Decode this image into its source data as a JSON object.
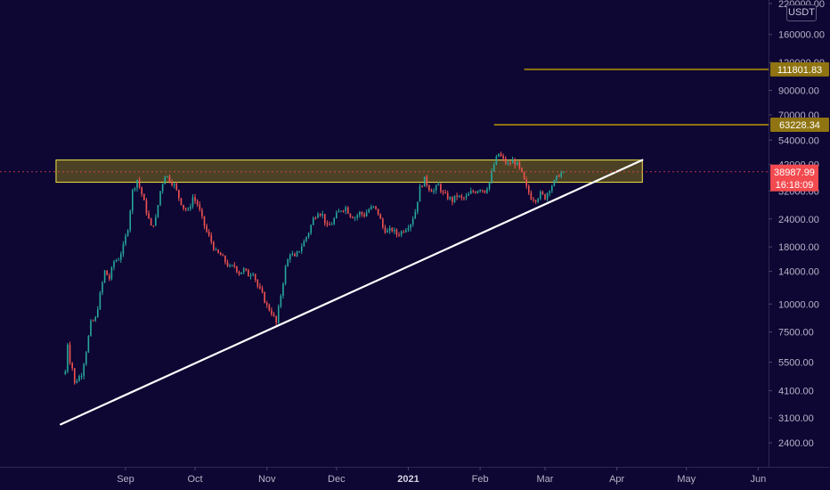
{
  "chart_data": {
    "type": "candlestick",
    "symbol_currency": "USDT",
    "y_scale": "log",
    "ylim": [
      2000,
      230000
    ],
    "y_ticks": [
      {
        "value": 220000,
        "label": "220000.00"
      },
      {
        "value": 160000,
        "label": "160000.00"
      },
      {
        "value": 120000,
        "label": "120000.00"
      },
      {
        "value": 90000,
        "label": "90000.00"
      },
      {
        "value": 70000,
        "label": "70000.00"
      },
      {
        "value": 54000,
        "label": "54000.00"
      },
      {
        "value": 42000,
        "label": "42000.00"
      },
      {
        "value": 32000,
        "label": "32000.00"
      },
      {
        "value": 24000,
        "label": "24000.00"
      },
      {
        "value": 18000,
        "label": "18000.00"
      },
      {
        "value": 14000,
        "label": "14000.00"
      },
      {
        "value": 10000,
        "label": "10000.00"
      },
      {
        "value": 7500,
        "label": "7500.00"
      },
      {
        "value": 5500,
        "label": "5500.00"
      },
      {
        "value": 4100,
        "label": "4100.00"
      },
      {
        "value": 3100,
        "label": "3100.00"
      },
      {
        "value": 2400,
        "label": "2400.00"
      }
    ],
    "x_labels": [
      {
        "date": "2020-09-01",
        "label": "Sep",
        "bold": false
      },
      {
        "date": "2020-10-01",
        "label": "Oct",
        "bold": false
      },
      {
        "date": "2020-11-01",
        "label": "Nov",
        "bold": false
      },
      {
        "date": "2020-12-01",
        "label": "Dec",
        "bold": false
      },
      {
        "date": "2021-01-01",
        "label": "2021",
        "bold": true
      },
      {
        "date": "2021-02-01",
        "label": "Feb",
        "bold": false
      },
      {
        "date": "2021-03-01",
        "label": "Mar",
        "bold": false
      },
      {
        "date": "2021-04-01",
        "label": "Apr",
        "bold": false
      },
      {
        "date": "2021-05-01",
        "label": "May",
        "bold": false
      },
      {
        "date": "2021-06-01",
        "label": "Jun",
        "bold": false
      }
    ],
    "price_path": [
      [
        "2020-08-06",
        5000
      ],
      [
        "2020-08-07",
        6700
      ],
      [
        "2020-08-08",
        5600
      ],
      [
        "2020-08-09",
        5200
      ],
      [
        "2020-08-10",
        4400
      ],
      [
        "2020-08-11",
        4600
      ],
      [
        "2020-08-13",
        4900
      ],
      [
        "2020-08-15",
        6200
      ],
      [
        "2020-08-17",
        8200
      ],
      [
        "2020-08-19",
        8600
      ],
      [
        "2020-08-21",
        11000
      ],
      [
        "2020-08-23",
        14000
      ],
      [
        "2020-08-25",
        13000
      ],
      [
        "2020-08-27",
        15500
      ],
      [
        "2020-08-29",
        16000
      ],
      [
        "2020-08-31",
        18000
      ],
      [
        "2020-09-02",
        22000
      ],
      [
        "2020-09-04",
        32000
      ],
      [
        "2020-09-06",
        36000
      ],
      [
        "2020-09-08",
        31000
      ],
      [
        "2020-09-10",
        26000
      ],
      [
        "2020-09-12",
        22000
      ],
      [
        "2020-09-14",
        24000
      ],
      [
        "2020-09-16",
        32000
      ],
      [
        "2020-09-18",
        38000
      ],
      [
        "2020-09-20",
        36000
      ],
      [
        "2020-09-22",
        34000
      ],
      [
        "2020-09-24",
        30000
      ],
      [
        "2020-09-26",
        27000
      ],
      [
        "2020-09-28",
        26000
      ],
      [
        "2020-09-30",
        30000
      ],
      [
        "2020-10-02",
        28000
      ],
      [
        "2020-10-04",
        24000
      ],
      [
        "2020-10-06",
        21000
      ],
      [
        "2020-10-08",
        19000
      ],
      [
        "2020-10-10",
        17000
      ],
      [
        "2020-10-12",
        16500
      ],
      [
        "2020-10-14",
        15500
      ],
      [
        "2020-10-16",
        14500
      ],
      [
        "2020-10-18",
        14800
      ],
      [
        "2020-10-20",
        13800
      ],
      [
        "2020-10-22",
        14200
      ],
      [
        "2020-10-24",
        13500
      ],
      [
        "2020-10-26",
        14000
      ],
      [
        "2020-10-28",
        12000
      ],
      [
        "2020-10-30",
        11000
      ],
      [
        "2020-11-01",
        9800
      ],
      [
        "2020-11-03",
        9200
      ],
      [
        "2020-11-05",
        8200
      ],
      [
        "2020-11-07",
        11000
      ],
      [
        "2020-11-09",
        14500
      ],
      [
        "2020-11-11",
        17000
      ],
      [
        "2020-11-13",
        16000
      ],
      [
        "2020-11-15",
        17500
      ],
      [
        "2020-11-17",
        19000
      ],
      [
        "2020-11-19",
        21000
      ],
      [
        "2020-11-21",
        24000
      ],
      [
        "2020-11-23",
        26000
      ],
      [
        "2020-11-25",
        25000
      ],
      [
        "2020-11-27",
        22000
      ],
      [
        "2020-11-29",
        23000
      ],
      [
        "2020-12-01",
        25000
      ],
      [
        "2020-12-03",
        26500
      ],
      [
        "2020-12-05",
        27000
      ],
      [
        "2020-12-07",
        25000
      ],
      [
        "2020-12-09",
        24500
      ],
      [
        "2020-12-11",
        25500
      ],
      [
        "2020-12-13",
        25000
      ],
      [
        "2020-12-15",
        26500
      ],
      [
        "2020-12-17",
        27000
      ],
      [
        "2020-12-19",
        25500
      ],
      [
        "2020-12-21",
        22000
      ],
      [
        "2020-12-23",
        21000
      ],
      [
        "2020-12-25",
        21500
      ],
      [
        "2020-12-27",
        20500
      ],
      [
        "2020-12-29",
        21000
      ],
      [
        "2020-12-31",
        22000
      ],
      [
        "2021-01-02",
        23000
      ],
      [
        "2021-01-04",
        26000
      ],
      [
        "2021-01-06",
        33000
      ],
      [
        "2021-01-08",
        36000
      ],
      [
        "2021-01-10",
        33000
      ],
      [
        "2021-01-12",
        32000
      ],
      [
        "2021-01-14",
        34000
      ],
      [
        "2021-01-16",
        31000
      ],
      [
        "2021-01-18",
        30000
      ],
      [
        "2021-01-20",
        29000
      ],
      [
        "2021-01-22",
        30500
      ],
      [
        "2021-01-24",
        29500
      ],
      [
        "2021-01-26",
        30000
      ],
      [
        "2021-01-28",
        31500
      ],
      [
        "2021-01-30",
        32000
      ],
      [
        "2021-02-01",
        33000
      ],
      [
        "2021-02-03",
        32000
      ],
      [
        "2021-02-05",
        35000
      ],
      [
        "2021-02-07",
        42000
      ],
      [
        "2021-02-09",
        47000
      ],
      [
        "2021-02-11",
        44000
      ],
      [
        "2021-02-13",
        42000
      ],
      [
        "2021-02-15",
        43500
      ],
      [
        "2021-02-17",
        42000
      ],
      [
        "2021-02-19",
        38000
      ],
      [
        "2021-02-21",
        33000
      ],
      [
        "2021-02-23",
        30000
      ],
      [
        "2021-02-25",
        29500
      ],
      [
        "2021-02-27",
        31000
      ],
      [
        "2021-03-01",
        30000
      ],
      [
        "2021-03-03",
        33000
      ],
      [
        "2021-03-05",
        35000
      ],
      [
        "2021-03-07",
        38000
      ],
      [
        "2021-03-09",
        38988
      ]
    ],
    "annotations": {
      "resistance_zone": {
        "from": "2020-08-02",
        "to": "2021-04-12",
        "low": 35000,
        "high": 44000
      },
      "trendline": {
        "start": [
          "2020-08-04",
          2900
        ],
        "end": [
          "2021-04-12",
          44000
        ]
      },
      "target_lines": [
        {
          "from": "2021-02-20",
          "value": 111801.83,
          "label": "111801.83"
        },
        {
          "from": "2021-02-07",
          "value": 63228.34,
          "label": "63228.34"
        }
      ],
      "last_price": {
        "value": 38987.99,
        "label": "38987.99",
        "countdown": "16:18:09"
      }
    },
    "colors": {
      "background": "#0e0633",
      "up": "#26a69a",
      "down": "#ef5350",
      "zone_fill": "#807317",
      "zone_border": "#f2e34a",
      "target_line": "#8f7411",
      "trendline": "#ffffff",
      "last_price": "#f24a4f"
    }
  }
}
